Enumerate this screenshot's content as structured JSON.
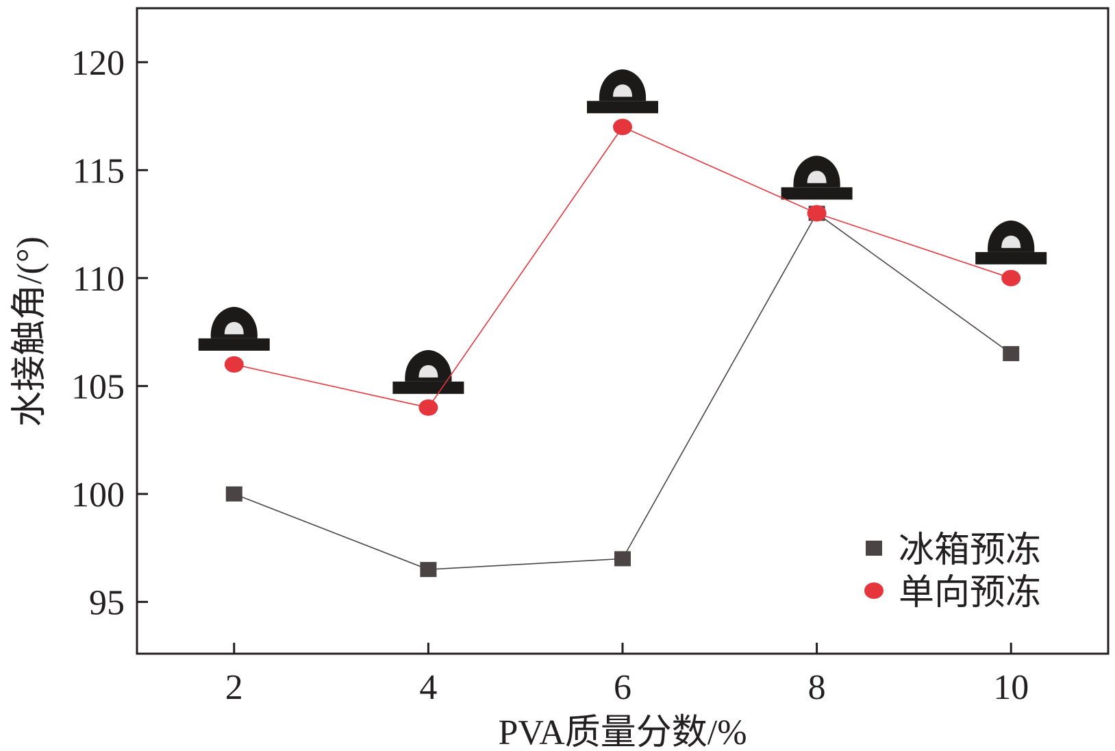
{
  "chart_data": {
    "type": "line",
    "xlabel": "PVA质量分数/%",
    "ylabel": "水接触角/(°)",
    "x": [
      2,
      4,
      6,
      8,
      10
    ],
    "xlim": [
      1,
      11
    ],
    "ylim": [
      92.6,
      122.5
    ],
    "xticks": [
      "2",
      "4",
      "6",
      "8",
      "10"
    ],
    "yticks": [
      "95",
      "100",
      "105",
      "110",
      "115",
      "120"
    ],
    "ytick_values": [
      95,
      100,
      105,
      110,
      115,
      120
    ],
    "grid": false,
    "legend_position": "bottom-right",
    "series": [
      {
        "name": "冰箱预冻",
        "marker": "square",
        "color": "#4a4544",
        "values": [
          100,
          96.5,
          97,
          113,
          106.5
        ]
      },
      {
        "name": "单向预冻",
        "marker": "circle",
        "color": "#e5353d",
        "values": [
          106,
          104,
          117,
          113,
          110
        ]
      }
    ],
    "annotations": "water-droplet-images above each 单向预冻 point"
  }
}
